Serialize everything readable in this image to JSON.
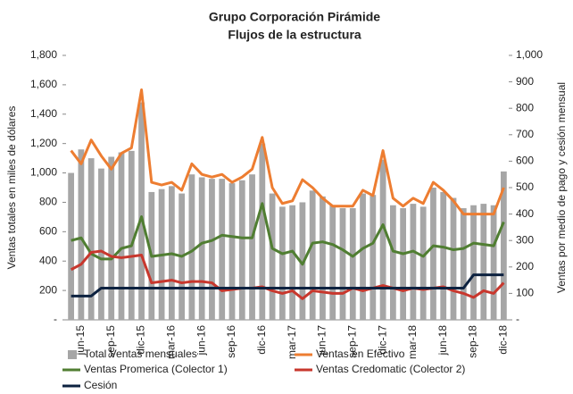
{
  "chart_data": {
    "type": "combo",
    "title": "Grupo Corporación Pirámide",
    "subtitle": "Flujos de la estructura",
    "y_label": "Ventas totales en miles de dólares",
    "y2_label": "Ventas por  medio de pago y cesión mensual",
    "categories": [
      null,
      "jun-15",
      null,
      null,
      "sep-15",
      null,
      null,
      "dic-15",
      null,
      null,
      "mar-16",
      null,
      null,
      "jun-16",
      null,
      null,
      "sep-16",
      null,
      null,
      "dic-16",
      null,
      null,
      "mar-17",
      null,
      null,
      "jun-17",
      null,
      null,
      "sep-17",
      null,
      null,
      "dic-17",
      null,
      null,
      "mar-18",
      null,
      null,
      "jun-18",
      null,
      null,
      "sep-18",
      null,
      null,
      "dic-18"
    ],
    "series": [
      {
        "name": "Total Ventas mensuales",
        "type": "bar",
        "color": "#a6a6a6",
        "values": [
          1000,
          1160,
          1100,
          1030,
          1110,
          1140,
          1150,
          1480,
          870,
          890,
          910,
          860,
          990,
          970,
          960,
          960,
          930,
          950,
          990,
          1200,
          860,
          770,
          780,
          800,
          880,
          840,
          780,
          760,
          760,
          860,
          850,
          1090,
          780,
          760,
          790,
          770,
          900,
          870,
          830,
          760,
          780,
          790,
          780,
          1010
        ]
      },
      {
        "name": "Ventas en Efectivo",
        "type": "line",
        "axis": "y2",
        "color": "#ed7d31",
        "values": [
          640,
          590,
          680,
          620,
          570,
          630,
          650,
          870,
          520,
          510,
          520,
          490,
          590,
          550,
          540,
          550,
          520,
          540,
          570,
          690,
          500,
          440,
          450,
          530,
          500,
          460,
          430,
          430,
          430,
          490,
          470,
          640,
          460,
          430,
          460,
          440,
          520,
          490,
          450,
          400,
          400,
          400,
          400,
          500
        ]
      },
      {
        "name": "Ventas Promerica (Colector 1)",
        "type": "line",
        "axis": "y2",
        "color": "#507e32",
        "values": [
          300,
          310,
          250,
          230,
          230,
          270,
          280,
          390,
          240,
          245,
          250,
          240,
          260,
          290,
          300,
          320,
          315,
          310,
          310,
          440,
          270,
          250,
          260,
          210,
          290,
          295,
          285,
          265,
          240,
          270,
          290,
          360,
          260,
          250,
          260,
          240,
          280,
          275,
          265,
          270,
          290,
          285,
          280,
          370
        ]
      },
      {
        "name": "Ventas Credomatic (Colector 2)",
        "type": "line",
        "axis": "y2",
        "color": "#c8372d",
        "values": [
          190,
          210,
          255,
          260,
          240,
          235,
          240,
          245,
          140,
          145,
          150,
          140,
          145,
          145,
          140,
          110,
          115,
          120,
          120,
          125,
          110,
          100,
          110,
          80,
          110,
          105,
          100,
          100,
          120,
          110,
          120,
          130,
          120,
          110,
          120,
          115,
          120,
          125,
          110,
          100,
          85,
          110,
          100,
          140
        ]
      },
      {
        "name": "Cesión",
        "type": "line",
        "axis": "y2",
        "color": "#0d2240",
        "values": [
          90,
          90,
          90,
          120,
          120,
          120,
          120,
          120,
          120,
          120,
          120,
          120,
          120,
          120,
          120,
          120,
          120,
          120,
          120,
          120,
          120,
          120,
          120,
          120,
          120,
          120,
          120,
          120,
          120,
          120,
          120,
          120,
          120,
          120,
          120,
          120,
          120,
          120,
          120,
          120,
          170,
          170,
          170,
          170
        ]
      }
    ],
    "ylim": [
      0,
      1800
    ],
    "yticks": [
      {
        "value": 0,
        "label": "-"
      },
      200,
      400,
      600,
      800,
      {
        "value": 1000,
        "label": "1,000"
      },
      {
        "value": 1200,
        "label": "1,200"
      },
      {
        "value": 1400,
        "label": "1,400"
      },
      {
        "value": 1600,
        "label": "1,600"
      },
      {
        "value": 1800,
        "label": "1,800"
      }
    ],
    "y2lim": [
      0,
      1000
    ],
    "y2ticks": [
      {
        "value": 0,
        "label": "-"
      },
      100,
      200,
      300,
      400,
      500,
      600,
      700,
      800,
      900,
      {
        "value": 1000,
        "label": "1,000"
      }
    ]
  }
}
